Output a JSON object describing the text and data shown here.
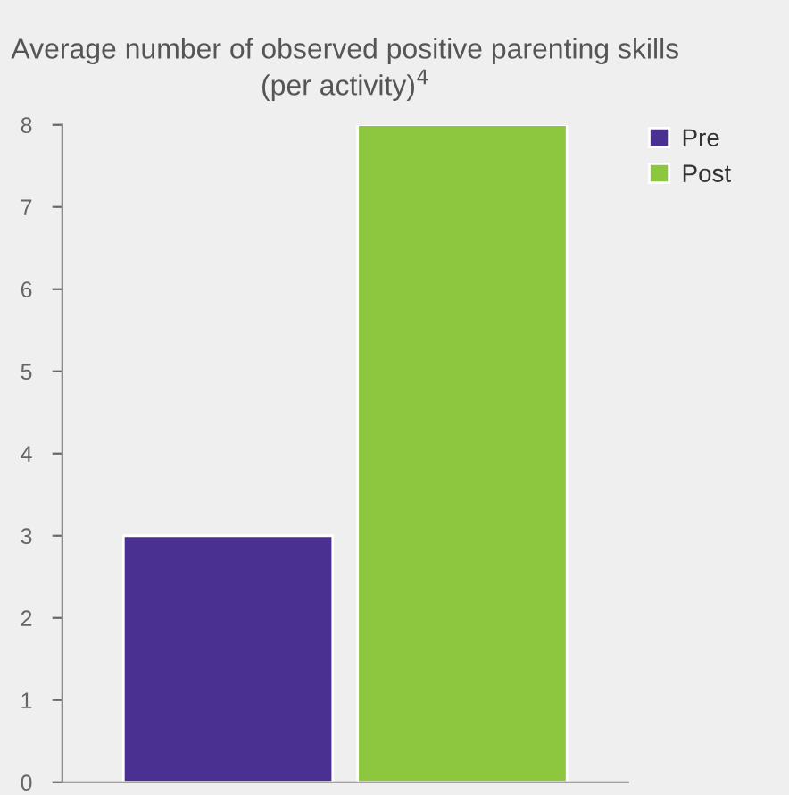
{
  "chart_data": {
    "type": "bar",
    "title": "Average number of observed positive parenting skills (per activity)$^{4}$",
    "categories": [
      null
    ],
    "series": [
      {
        "name": "Pre",
        "color": "#4a3191",
        "values": [
          3
        ]
      },
      {
        "name": "Post",
        "color": "#8dc63f",
        "values": [
          8
        ]
      }
    ],
    "ylim": [
      0,
      8
    ],
    "yticks": [
      0,
      1,
      2,
      3,
      4,
      5,
      6,
      7,
      8
    ],
    "grid": false,
    "legend": "top right"
  }
}
